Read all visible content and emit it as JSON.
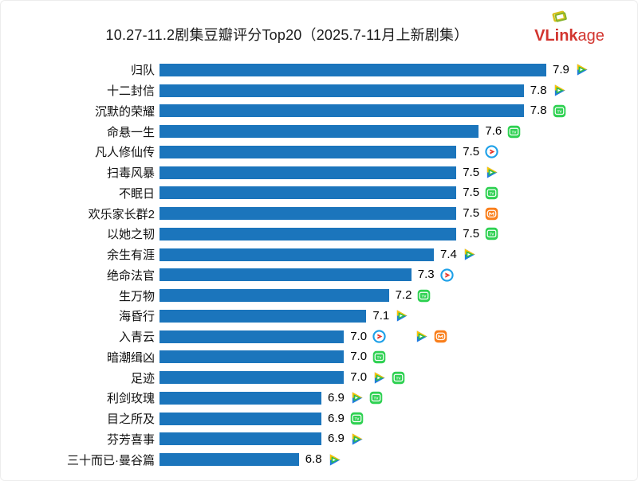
{
  "header": {
    "title": "10.27-11.2剧集豆瓣评分Top20（2025.7-11月上新剧集）",
    "logo": {
      "bold": "VLink",
      "rest": "age",
      "color": "#d2342e"
    }
  },
  "colors": {
    "bar": "#1b75bc",
    "score_text": "#000000",
    "logo_red": "#d2342e",
    "tencent_green": "#2dbd4e",
    "youku_blue": "#1da0e8",
    "youku_red": "#e8382b",
    "iqiyi_green": "#2fd152",
    "mango_orange": "#f97f1c"
  },
  "chart_data": {
    "type": "bar",
    "orientation": "horizontal",
    "title": "10.27-11.2剧集豆瓣评分Top20（2025.7-11月上新剧集）",
    "xlabel": "",
    "ylabel": "",
    "grid": false,
    "legend": false,
    "xlim": [
      6.18,
      7.9
    ],
    "bar_color": "#1b75bc",
    "categories": [
      "归队",
      "十二封信",
      "沉默的荣耀",
      "命悬一生",
      "凡人修仙传",
      "扫毒风暴",
      "不眠日",
      "欢乐家长群2",
      "以她之韧",
      "余生有涯",
      "绝命法官",
      "生万物",
      "海昏行",
      "入青云",
      "暗潮缉凶",
      "足迹",
      "利剑玫瑰",
      "目之所及",
      "芬芳喜事",
      "三十而已·曼谷篇"
    ],
    "values": [
      7.9,
      7.8,
      7.8,
      7.6,
      7.5,
      7.5,
      7.5,
      7.5,
      7.5,
      7.4,
      7.3,
      7.2,
      7.1,
      7.0,
      7.0,
      7.0,
      6.9,
      6.9,
      6.9,
      6.8
    ],
    "platform_icons": [
      [
        "tencent-video"
      ],
      [
        "tencent-video"
      ],
      [
        "iqiyi"
      ],
      [
        "iqiyi"
      ],
      [
        "youku"
      ],
      [
        "tencent-video"
      ],
      [
        "iqiyi"
      ],
      [
        "mango-tv"
      ],
      [
        "iqiyi"
      ],
      [
        "tencent-video"
      ],
      [
        "youku"
      ],
      [
        "iqiyi"
      ],
      [
        "tencent-video"
      ],
      [
        "youku",
        "spacer",
        "tencent-video",
        "mango-tv"
      ],
      [
        "iqiyi"
      ],
      [
        "tencent-video",
        "iqiyi"
      ],
      [
        "tencent-video",
        "iqiyi"
      ],
      [
        "iqiyi"
      ],
      [
        "tencent-video"
      ],
      [
        "tencent-video"
      ]
    ]
  }
}
